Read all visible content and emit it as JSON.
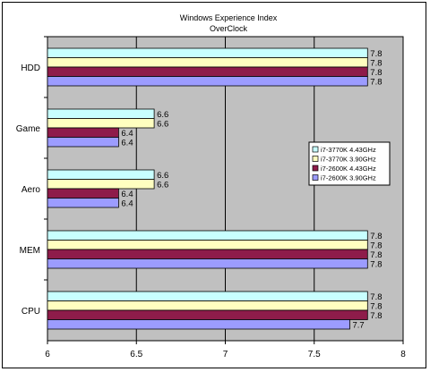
{
  "chart_data": {
    "type": "bar",
    "orientation": "horizontal",
    "title": "Windows Experience Index",
    "subtitle": "OverClock",
    "categories": [
      "HDD",
      "Game",
      "Aero",
      "MEM",
      "CPU"
    ],
    "series": [
      {
        "name": "i7-3770K 4.43GHz",
        "values": [
          7.8,
          6.6,
          6.6,
          7.8,
          7.8
        ],
        "color": "#c8ffff"
      },
      {
        "name": "i7-3770K 3.90GHz",
        "values": [
          7.8,
          6.6,
          6.6,
          7.8,
          7.8
        ],
        "color": "#ffffc0"
      },
      {
        "name": "i7-2600K 4.43GHz",
        "values": [
          7.8,
          6.4,
          6.4,
          7.8,
          7.8
        ],
        "color": "#8e1c4a"
      },
      {
        "name": "i7-2600K 3.90GHz",
        "values": [
          7.8,
          6.4,
          6.4,
          7.8,
          7.7
        ],
        "color": "#9c9cff"
      }
    ],
    "data_labels": [
      [
        "7.8",
        "6.6",
        "6.6",
        "7.8",
        "7.8"
      ],
      [
        "7.8",
        "6.6",
        "6.6",
        "7.8",
        "7.8"
      ],
      [
        "7.8",
        "6.4",
        "6.4",
        "7.8",
        "7.8"
      ],
      [
        "7.8",
        "6.4",
        "6.4",
        "7.8",
        "7.7"
      ]
    ],
    "xlim": [
      6,
      8
    ],
    "xticks": [
      "6",
      "6.5",
      "7",
      "7.5",
      "8"
    ],
    "xtick_values": [
      6,
      6.5,
      7,
      7.5,
      8
    ],
    "grid": true,
    "plot_background": "#c0c0c0",
    "legend_position": "right"
  }
}
